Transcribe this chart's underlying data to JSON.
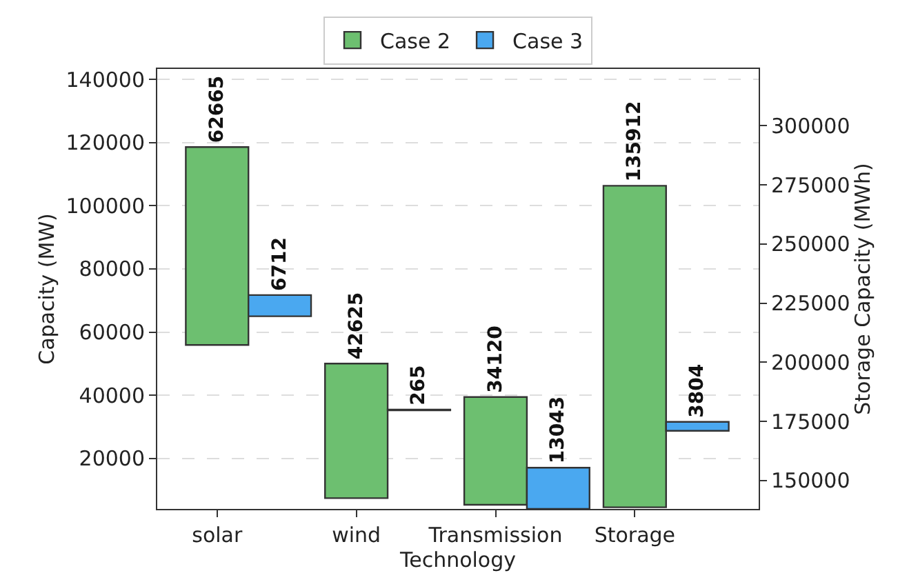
{
  "chart_data": {
    "type": "bar",
    "categories": [
      "solar",
      "wind",
      "Transmission",
      "Storage"
    ],
    "xlabel": "Technology",
    "ylabel": "Capacity (MW)",
    "y2label": "Storage Capacity (MWh)",
    "series": [
      {
        "name": "Case 2",
        "color": "#6dbf70",
        "values": [
          62665,
          42625,
          34120,
          null
        ],
        "base": [
          55900,
          7400,
          5300,
          null
        ]
      },
      {
        "name": "Case 3",
        "color": "#4aa8f0",
        "values": [
          6712,
          265,
          13043,
          null
        ],
        "base": [
          65000,
          35200,
          4000,
          null
        ]
      },
      {
        "color": "#6dbf70",
        "axis": "y2",
        "values": [
          null,
          null,
          null,
          135912
        ],
        "base": [
          null,
          null,
          null,
          138700
        ]
      },
      {
        "color": "#4aa8f0",
        "axis": "y2",
        "values": [
          null,
          null,
          null,
          3804
        ],
        "base": [
          null,
          null,
          null,
          171000
        ]
      }
    ],
    "ylim": [
      4000,
      143300
    ],
    "yticks": [
      20000,
      40000,
      60000,
      80000,
      100000,
      120000,
      140000
    ],
    "y2lim": [
      138000,
      324000
    ],
    "y2ticks": [
      150000,
      175000,
      200000,
      225000,
      250000,
      275000,
      300000
    ],
    "data_labels": true,
    "grid": "y",
    "legend": "top"
  }
}
